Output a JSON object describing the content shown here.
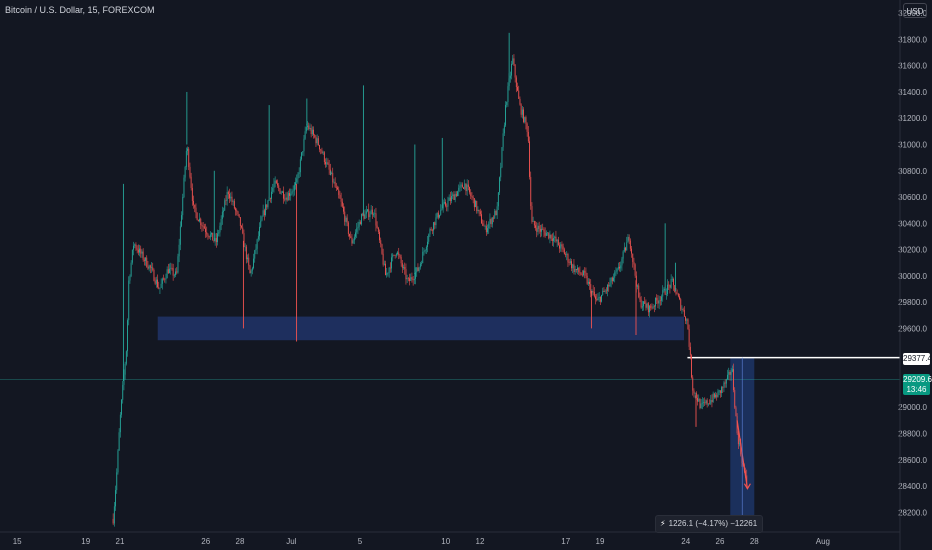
{
  "header": {
    "title": "Bitcoin / U.S. Dollar, 15, FOREXCOM",
    "currency_button": "USD"
  },
  "colors": {
    "background": "#131722",
    "up": "#26a69a",
    "down": "#ef5350",
    "axis_text": "#b2b5be",
    "zone": "#1e2f5e",
    "projection": "#1d3566",
    "level_line": "#ffffff",
    "last_price_line": "#26a69a"
  },
  "tags": {
    "level_price": "29377.4",
    "last_price": "29209.6",
    "countdown": "13:46"
  },
  "measure": {
    "icon": "bolt-icon",
    "text": "1226.1 (−4.17%) −12261"
  },
  "chart_data": {
    "type": "candlestick",
    "title": "Bitcoin / U.S. Dollar, 15, FOREXCOM",
    "y_ticks": [
      28200,
      28400,
      28600,
      28800,
      29000,
      29200,
      29400,
      29600,
      29800,
      30000,
      30200,
      30400,
      30600,
      30800,
      31000,
      31200,
      31400,
      31600,
      31800,
      32000
    ],
    "y_tick_labels": [
      "28200.0",
      "28400.0",
      "28600.0",
      "28800.0",
      "29000.0",
      "",
      "",
      "29600.0",
      "29800.0",
      "30000.0",
      "30200.0",
      "30400.0",
      "30600.0",
      "30800.0",
      "31000.0",
      "31200.0",
      "31400.0",
      "31600.0",
      "31800.0",
      "32000.0"
    ],
    "ylim": [
      28050,
      32100
    ],
    "x_ticks": [
      {
        "label": "15",
        "day": 15
      },
      {
        "label": "19",
        "day": 19
      },
      {
        "label": "21",
        "day": 21
      },
      {
        "label": "26",
        "day": 26
      },
      {
        "label": "28",
        "day": 28
      },
      {
        "label": "Jul",
        "day": 31
      },
      {
        "label": "5",
        "day": 35
      },
      {
        "label": "10",
        "day": 40
      },
      {
        "label": "12",
        "day": 42
      },
      {
        "label": "17",
        "day": 47
      },
      {
        "label": "19",
        "day": 49
      },
      {
        "label": "24",
        "day": 54
      },
      {
        "label": "26",
        "day": 56
      },
      {
        "label": "28",
        "day": 58
      },
      {
        "label": "Aug",
        "day": 62
      }
    ],
    "xlim_days": [
      14.0,
      66.5
    ],
    "path_points": [
      [
        20.6,
        28150
      ],
      [
        20.8,
        28480
      ],
      [
        21.0,
        28900
      ],
      [
        21.2,
        29200
      ],
      [
        21.4,
        29480
      ],
      [
        21.5,
        29950
      ],
      [
        21.8,
        30250
      ],
      [
        22.3,
        30150
      ],
      [
        22.8,
        30050
      ],
      [
        23.3,
        29900
      ],
      [
        23.8,
        30050
      ],
      [
        24.3,
        30000
      ],
      [
        24.9,
        31000
      ],
      [
        25.3,
        30500
      ],
      [
        26.0,
        30350
      ],
      [
        26.6,
        30250
      ],
      [
        27.3,
        30650
      ],
      [
        28.0,
        30400
      ],
      [
        28.6,
        30000
      ],
      [
        29.3,
        30450
      ],
      [
        30.0,
        30700
      ],
      [
        30.7,
        30600
      ],
      [
        31.3,
        30700
      ],
      [
        31.9,
        31150
      ],
      [
        32.6,
        31000
      ],
      [
        33.2,
        30800
      ],
      [
        33.9,
        30550
      ],
      [
        34.5,
        30250
      ],
      [
        35.1,
        30450
      ],
      [
        35.8,
        30500
      ],
      [
        36.5,
        30000
      ],
      [
        37.1,
        30200
      ],
      [
        37.8,
        29950
      ],
      [
        38.4,
        30050
      ],
      [
        39.1,
        30350
      ],
      [
        39.7,
        30500
      ],
      [
        40.4,
        30600
      ],
      [
        41.1,
        30700
      ],
      [
        41.7,
        30550
      ],
      [
        42.3,
        30350
      ],
      [
        43.0,
        30500
      ],
      [
        43.5,
        31300
      ],
      [
        43.9,
        31650
      ],
      [
        44.3,
        31300
      ],
      [
        44.8,
        31100
      ],
      [
        45.0,
        30400
      ],
      [
        45.5,
        30350
      ],
      [
        46.2,
        30300
      ],
      [
        46.8,
        30200
      ],
      [
        47.5,
        30050
      ],
      [
        48.1,
        30000
      ],
      [
        48.8,
        29800
      ],
      [
        49.4,
        29900
      ],
      [
        50.1,
        30050
      ],
      [
        50.7,
        30300
      ],
      [
        51.3,
        29800
      ],
      [
        51.9,
        29750
      ],
      [
        52.6,
        29850
      ],
      [
        53.2,
        29950
      ],
      [
        53.7,
        29780
      ],
      [
        54.1,
        29650
      ],
      [
        54.4,
        29150
      ],
      [
        54.9,
        29000
      ],
      [
        55.4,
        29050
      ],
      [
        55.9,
        29100
      ],
      [
        56.4,
        29200
      ],
      [
        56.7,
        29300
      ],
      [
        57.0,
        28800
      ],
      [
        57.5,
        28450
      ],
      [
        57.6,
        28400
      ]
    ],
    "spikes": [
      {
        "day": 21.2,
        "high": 30700
      },
      {
        "day": 24.9,
        "high": 31400
      },
      {
        "day": 26.5,
        "high": 30800
      },
      {
        "day": 28.2,
        "low": 29600
      },
      {
        "day": 29.7,
        "high": 31300
      },
      {
        "day": 31.3,
        "low": 29500
      },
      {
        "day": 31.9,
        "high": 31350
      },
      {
        "day": 33.3,
        "high": 30800
      },
      {
        "day": 35.2,
        "high": 31450
      },
      {
        "day": 38.2,
        "high": 31000
      },
      {
        "day": 39.8,
        "high": 31050
      },
      {
        "day": 43.7,
        "high": 31850
      },
      {
        "day": 48.5,
        "low": 29600
      },
      {
        "day": 51.1,
        "low": 29550
      },
      {
        "day": 52.8,
        "high": 30400
      },
      {
        "day": 53.4,
        "high": 30100
      },
      {
        "day": 54.6,
        "low": 28850
      }
    ],
    "zones": [
      {
        "name": "support-zone",
        "day_from": 23.2,
        "day_to": 53.9,
        "price_from": 29510,
        "price_to": 29690
      },
      {
        "name": "projection-zone",
        "day_from": 56.6,
        "day_to": 58.0,
        "price_from": 28150,
        "price_to": 29377.4
      }
    ],
    "levels": {
      "horizontal_line": {
        "price": 29377.4,
        "day_from": 54.1
      },
      "last_price": 29209.6
    },
    "arrow": {
      "day_from": 57.0,
      "price_from": 28900,
      "day_to": 57.6,
      "price_to": 28380
    }
  }
}
